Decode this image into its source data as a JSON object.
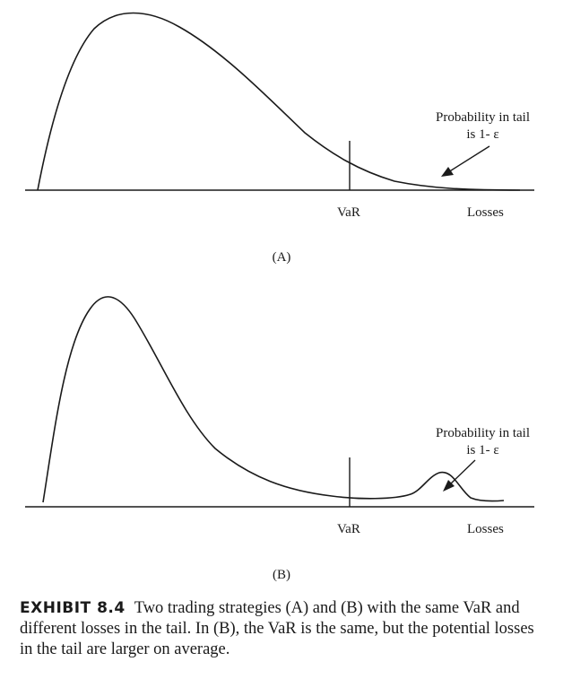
{
  "panel_a": {
    "var_label": "VaR",
    "losses_label": "Losses",
    "tail_note_line1": "Probability in tail",
    "tail_note_line2": "is 1- ε",
    "letter": "(A)"
  },
  "panel_b": {
    "var_label": "VaR",
    "losses_label": "Losses",
    "tail_note_line1": "Probability in tail",
    "tail_note_line2": "is 1- ε",
    "letter": "(B)"
  },
  "caption": {
    "label": "EXHIBIT 8.4",
    "text": "Two trading strategies (A) and (B) with the same VaR and different losses in the tail. In (B), the VaR is the same, but the potential losses in the tail are larger on average."
  },
  "colors": {
    "ink": "#1a1a1a",
    "background": "#ffffff"
  }
}
